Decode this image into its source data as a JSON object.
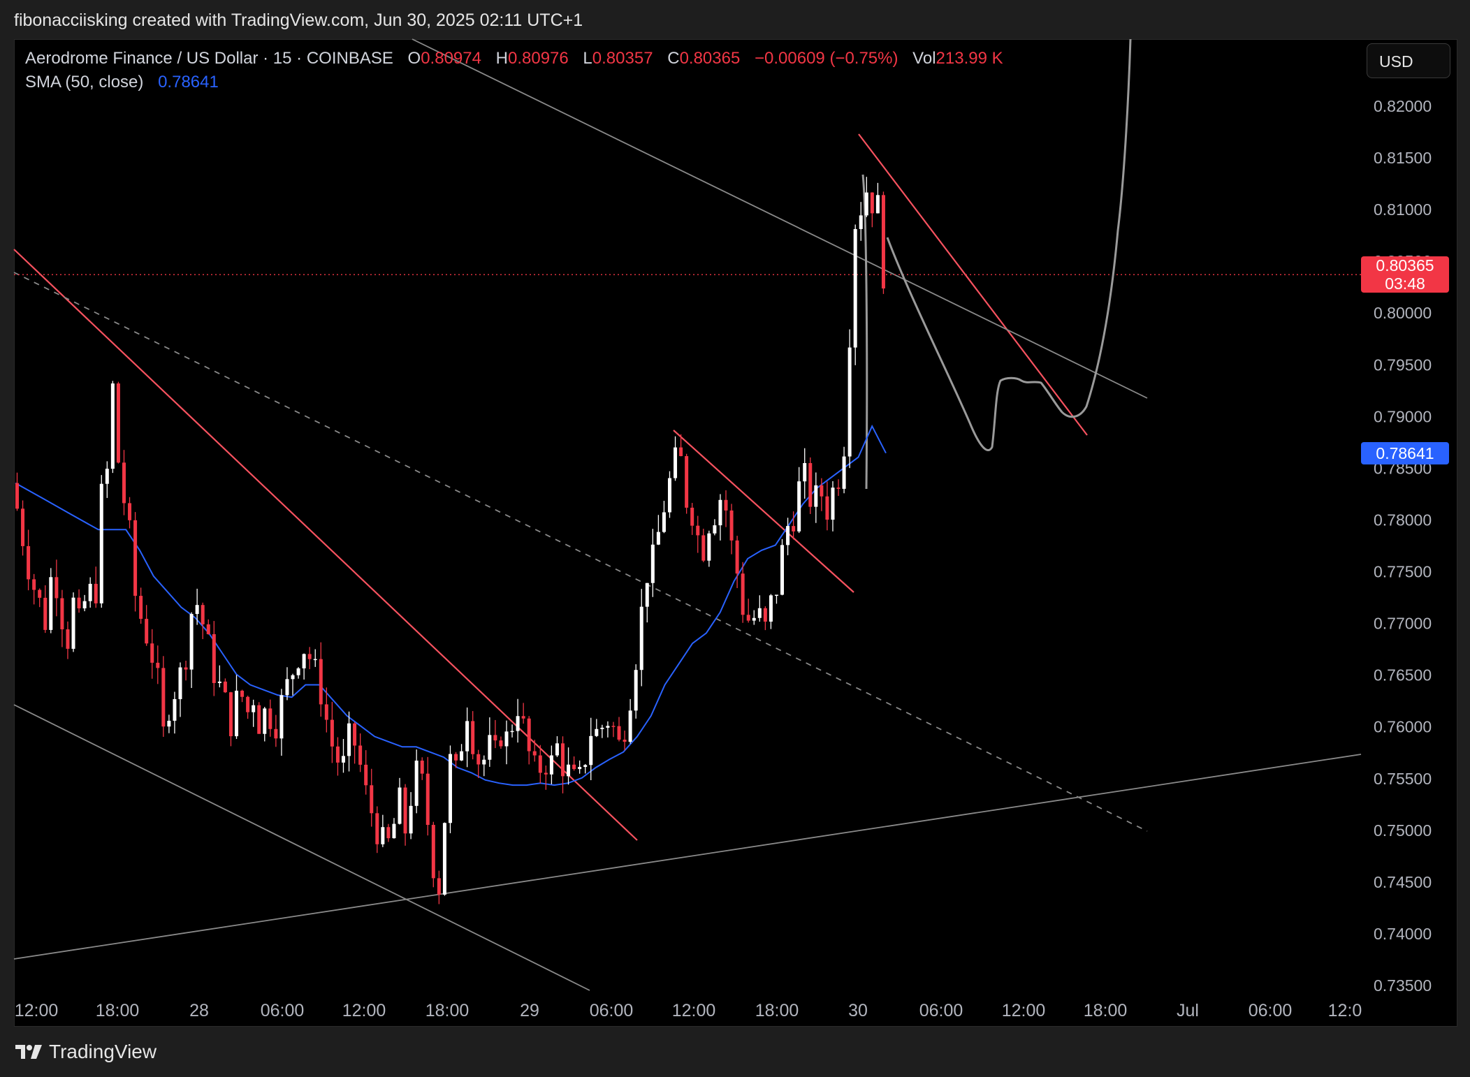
{
  "caption": "fibonacciisking created with TradingView.com, Jun 30, 2025 02:11 UTC+1",
  "legend": {
    "symbol": "Aerodrome Finance / US Dollar · 15 · COINBASE",
    "o_label": "O",
    "o_value": "0.80974",
    "h_label": "H",
    "h_value": "0.80976",
    "l_label": "L",
    "l_value": "0.80357",
    "c_label": "C",
    "c_value": "0.80365",
    "change": "−0.00609 (−0.75%)",
    "vol_label": "Vol",
    "vol_value": "213.99 K",
    "sma_label": "SMA (50, close)",
    "sma_value": "0.78641"
  },
  "currency_button": "USD",
  "price_tag": {
    "price": "0.80365",
    "countdown": "03:48"
  },
  "sma_tag": "0.78641",
  "brand": "TradingView",
  "colors": {
    "up": "#ffffff",
    "down": "#f23645",
    "sma": "#2962ff",
    "trend_red": "#f7525f",
    "trend_grey": "#8a8a8a",
    "background": "#000000"
  },
  "chart_data": {
    "type": "candlestick",
    "title": "Aerodrome Finance / US Dollar · 15 · COINBASE",
    "y_ticks": [
      "0.82000",
      "0.81500",
      "0.81000",
      "0.80500",
      "0.80000",
      "0.79500",
      "0.79000",
      "0.78500",
      "0.78000",
      "0.77500",
      "0.77000",
      "0.76500",
      "0.76000",
      "0.75500",
      "0.75000",
      "0.74500",
      "0.74000",
      "0.73500"
    ],
    "x_ticks": [
      "12:00",
      "18:00",
      "28",
      "06:00",
      "12:00",
      "18:00",
      "29",
      "06:00",
      "12:00",
      "18:00",
      "30",
      "06:00",
      "12:00",
      "18:00",
      "Jul",
      "06:00",
      "12:0"
    ],
    "ylim": [
      0.7345,
      0.8205
    ],
    "last_price": 0.80365,
    "sma50_last": 0.78641,
    "price_path": [
      [
        0.0,
        0.7835
      ],
      [
        0.5,
        0.7805
      ],
      [
        1.0,
        0.777
      ],
      [
        1.5,
        0.774
      ],
      [
        2.0,
        0.772
      ],
      [
        2.5,
        0.77
      ],
      [
        3.0,
        0.776
      ],
      [
        3.5,
        0.772
      ],
      [
        4.0,
        0.768
      ],
      [
        4.5,
        0.772
      ],
      [
        5.0,
        0.769
      ],
      [
        5.5,
        0.774
      ],
      [
        6.0,
        0.771
      ],
      [
        6.5,
        0.782
      ],
      [
        7.0,
        0.785
      ],
      [
        7.2,
        0.796
      ],
      [
        7.5,
        0.788
      ],
      [
        8.0,
        0.783
      ],
      [
        8.5,
        0.779
      ],
      [
        9.0,
        0.772
      ],
      [
        9.5,
        0.77
      ],
      [
        10.0,
        0.768
      ],
      [
        10.5,
        0.765
      ],
      [
        11.0,
        0.759
      ],
      [
        11.5,
        0.763
      ],
      [
        12.0,
        0.764
      ],
      [
        12.5,
        0.766
      ],
      [
        13.0,
        0.771
      ],
      [
        13.5,
        0.772
      ],
      [
        14.0,
        0.769
      ],
      [
        14.5,
        0.766
      ],
      [
        15.0,
        0.764
      ],
      [
        15.5,
        0.762
      ],
      [
        16.0,
        0.76
      ],
      [
        16.5,
        0.764
      ],
      [
        17.0,
        0.761
      ],
      [
        17.5,
        0.763
      ],
      [
        18.0,
        0.76
      ],
      [
        18.5,
        0.762
      ],
      [
        19.0,
        0.76
      ],
      [
        19.5,
        0.762
      ],
      [
        20.0,
        0.764
      ],
      [
        20.5,
        0.766
      ],
      [
        21.0,
        0.768
      ],
      [
        21.5,
        0.767
      ],
      [
        22.0,
        0.765
      ],
      [
        22.5,
        0.763
      ],
      [
        23.0,
        0.759
      ],
      [
        23.5,
        0.757
      ],
      [
        24.0,
        0.756
      ],
      [
        24.5,
        0.759
      ],
      [
        25.0,
        0.758
      ],
      [
        25.5,
        0.754
      ],
      [
        26.0,
        0.752
      ],
      [
        26.5,
        0.75
      ],
      [
        27.0,
        0.748
      ],
      [
        27.5,
        0.749
      ],
      [
        28.0,
        0.753
      ],
      [
        28.5,
        0.75
      ],
      [
        29.0,
        0.754
      ],
      [
        29.5,
        0.756
      ],
      [
        30.0,
        0.752
      ],
      [
        30.5,
        0.747
      ],
      [
        30.9,
        0.744
      ],
      [
        31.3,
        0.75
      ],
      [
        31.6,
        0.758
      ],
      [
        32.0,
        0.754
      ],
      [
        32.5,
        0.758
      ],
      [
        33.0,
        0.762
      ],
      [
        33.5,
        0.758
      ],
      [
        34.0,
        0.756
      ],
      [
        34.5,
        0.758
      ],
      [
        35.0,
        0.757
      ],
      [
        35.5,
        0.76
      ],
      [
        36.0,
        0.758
      ],
      [
        36.5,
        0.763
      ],
      [
        37.0,
        0.76
      ],
      [
        37.5,
        0.757
      ],
      [
        38.0,
        0.755
      ],
      [
        38.5,
        0.757
      ],
      [
        39.0,
        0.756
      ],
      [
        39.5,
        0.758
      ],
      [
        40.0,
        0.756
      ],
      [
        40.5,
        0.755
      ],
      [
        41.0,
        0.754
      ],
      [
        41.5,
        0.757
      ],
      [
        42.0,
        0.76
      ],
      [
        42.5,
        0.759
      ],
      [
        43.0,
        0.761
      ],
      [
        43.5,
        0.76
      ],
      [
        44.0,
        0.758
      ],
      [
        44.5,
        0.761
      ],
      [
        45.0,
        0.765
      ],
      [
        45.5,
        0.77
      ],
      [
        46.0,
        0.775
      ],
      [
        46.5,
        0.776
      ],
      [
        47.0,
        0.78
      ],
      [
        47.5,
        0.783
      ],
      [
        48.0,
        0.785
      ],
      [
        48.3,
        0.788
      ],
      [
        48.7,
        0.781
      ],
      [
        49.0,
        0.783
      ],
      [
        49.5,
        0.779
      ],
      [
        50.0,
        0.777
      ],
      [
        50.5,
        0.78
      ],
      [
        51.0,
        0.781
      ],
      [
        51.5,
        0.783
      ],
      [
        52.0,
        0.778
      ],
      [
        52.5,
        0.775
      ],
      [
        53.0,
        0.771
      ],
      [
        53.5,
        0.77
      ],
      [
        54.0,
        0.771
      ],
      [
        54.5,
        0.769
      ],
      [
        55.0,
        0.772
      ],
      [
        55.5,
        0.774
      ],
      [
        56.0,
        0.779
      ],
      [
        56.5,
        0.78
      ],
      [
        57.0,
        0.783
      ],
      [
        57.5,
        0.784
      ],
      [
        58.0,
        0.781
      ],
      [
        58.5,
        0.783
      ],
      [
        59.0,
        0.781
      ],
      [
        59.5,
        0.783
      ],
      [
        60.0,
        0.785
      ],
      [
        60.4,
        0.789
      ],
      [
        60.6,
        0.797
      ],
      [
        60.9,
        0.804
      ],
      [
        61.2,
        0.813
      ],
      [
        61.5,
        0.81
      ],
      [
        61.8,
        0.813
      ],
      [
        62.1,
        0.809
      ],
      [
        62.4,
        0.812
      ],
      [
        62.7,
        0.81
      ],
      [
        63.1,
        0.804
      ]
    ],
    "sma50_path": [
      [
        0.0,
        0.7835
      ],
      [
        2.0,
        0.782
      ],
      [
        4.0,
        0.7805
      ],
      [
        6.0,
        0.779
      ],
      [
        8.0,
        0.779
      ],
      [
        9.0,
        0.777
      ],
      [
        10.0,
        0.7745
      ],
      [
        11.0,
        0.773
      ],
      [
        12.0,
        0.7715
      ],
      [
        13.0,
        0.7705
      ],
      [
        14.0,
        0.769
      ],
      [
        15.0,
        0.767
      ],
      [
        16.0,
        0.765
      ],
      [
        17.0,
        0.764
      ],
      [
        18.0,
        0.7635
      ],
      [
        19.0,
        0.763
      ],
      [
        20.0,
        0.7628
      ],
      [
        21.0,
        0.764
      ],
      [
        22.0,
        0.764
      ],
      [
        23.0,
        0.7625
      ],
      [
        24.0,
        0.761
      ],
      [
        25.0,
        0.76
      ],
      [
        26.0,
        0.759
      ],
      [
        27.0,
        0.7585
      ],
      [
        28.0,
        0.758
      ],
      [
        29.0,
        0.758
      ],
      [
        30.0,
        0.7575
      ],
      [
        31.0,
        0.757
      ],
      [
        32.0,
        0.756
      ],
      [
        33.0,
        0.7555
      ],
      [
        34.0,
        0.7548
      ],
      [
        35.0,
        0.7545
      ],
      [
        36.0,
        0.7543
      ],
      [
        37.0,
        0.7543
      ],
      [
        38.0,
        0.7545
      ],
      [
        39.0,
        0.7543
      ],
      [
        40.0,
        0.7545
      ],
      [
        41.0,
        0.755
      ],
      [
        42.0,
        0.756
      ],
      [
        43.0,
        0.7568
      ],
      [
        44.0,
        0.7575
      ],
      [
        45.0,
        0.759
      ],
      [
        46.0,
        0.761
      ],
      [
        47.0,
        0.764
      ],
      [
        48.0,
        0.766
      ],
      [
        49.0,
        0.768
      ],
      [
        50.0,
        0.769
      ],
      [
        51.0,
        0.771
      ],
      [
        52.0,
        0.774
      ],
      [
        53.0,
        0.7762
      ],
      [
        54.0,
        0.777
      ],
      [
        55.0,
        0.7775
      ],
      [
        56.0,
        0.7795
      ],
      [
        57.0,
        0.7815
      ],
      [
        58.0,
        0.783
      ],
      [
        59.0,
        0.784
      ],
      [
        60.0,
        0.785
      ],
      [
        61.0,
        0.786
      ],
      [
        62.0,
        0.789
      ],
      [
        63.0,
        0.7864
      ]
    ]
  }
}
